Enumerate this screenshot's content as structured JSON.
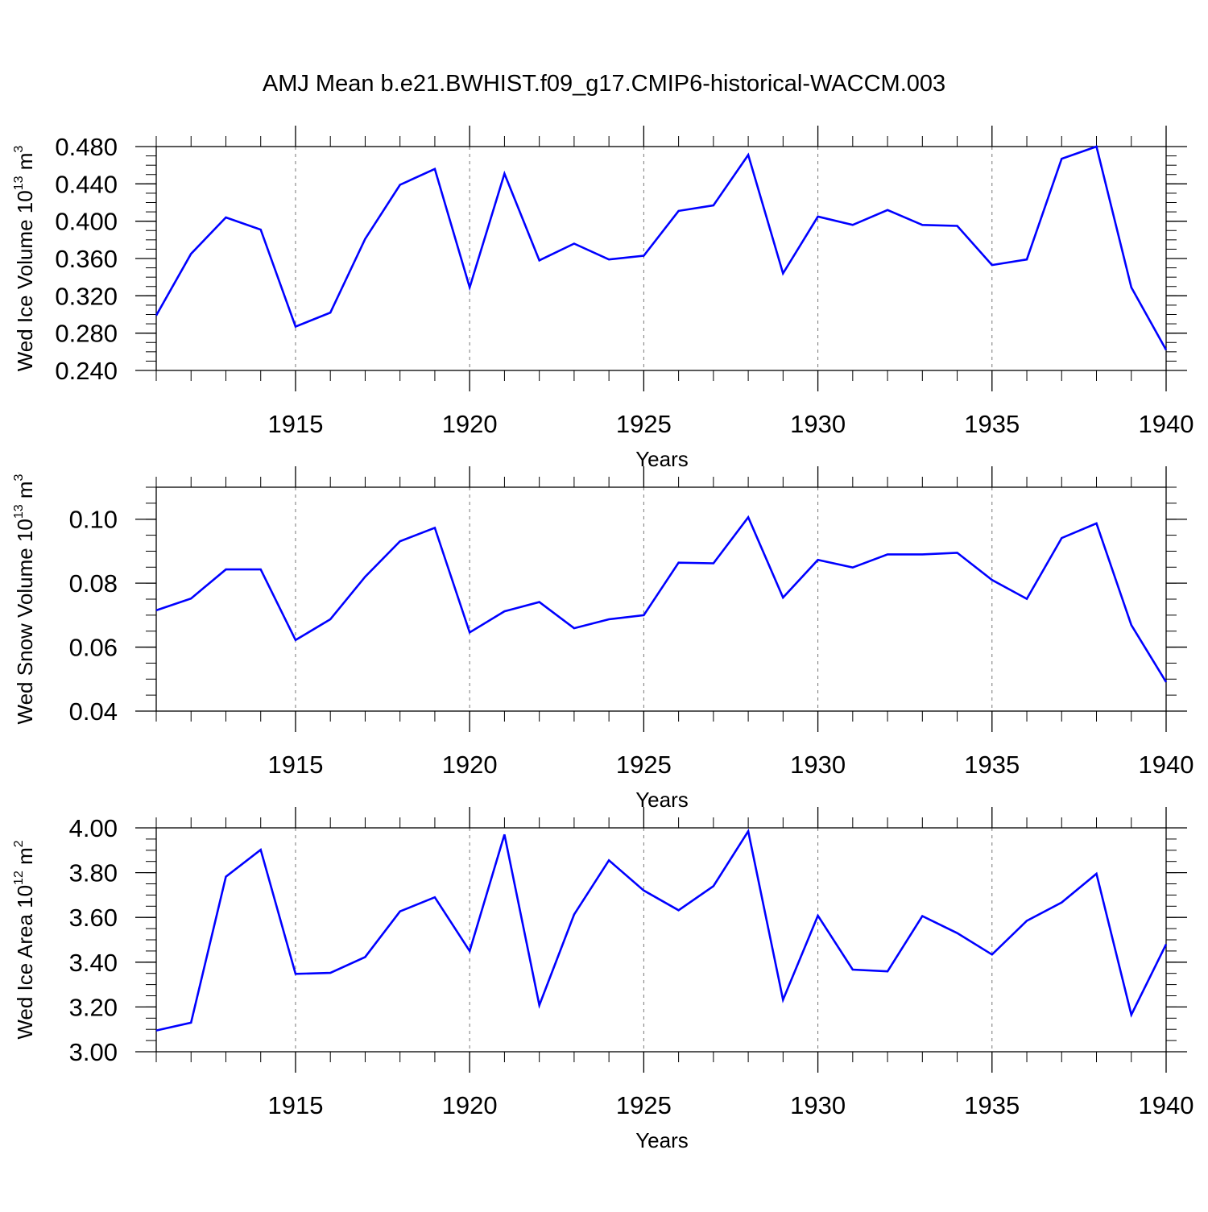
{
  "figure": {
    "title": "AMJ Mean b.e21.BWHIST.f09_g17.CMIP6-historical-WACCM.003"
  },
  "chart_data": [
    {
      "type": "line",
      "xlabel": "Years",
      "ylabel_base": "Wed Ice Volume 10",
      "ylabel_exp": "13",
      "ylabel_unit": "m",
      "ylabel_unit_exp": "3",
      "xlim": [
        1911,
        1940
      ],
      "ylim": [
        0.24,
        0.48
      ],
      "yticks": [
        0.24,
        0.28,
        0.32,
        0.36,
        0.4,
        0.44,
        0.48
      ],
      "ytick_labels": [
        "0.240",
        "0.280",
        "0.320",
        "0.360",
        "0.400",
        "0.440",
        "0.480"
      ],
      "xticks": [
        1915,
        1920,
        1925,
        1930,
        1935,
        1940
      ],
      "xtick_labels": [
        "1915",
        "1920",
        "1925",
        "1930",
        "1935",
        "1940"
      ],
      "series_color": "#0000ff",
      "x": [
        1911,
        1912,
        1913,
        1914,
        1915,
        1916,
        1917,
        1918,
        1919,
        1920,
        1921,
        1922,
        1923,
        1924,
        1925,
        1926,
        1927,
        1928,
        1929,
        1930,
        1931,
        1932,
        1933,
        1934,
        1935,
        1936,
        1937,
        1938,
        1939,
        1940
      ],
      "values": [
        0.299,
        0.365,
        0.404,
        0.391,
        0.287,
        0.302,
        0.381,
        0.439,
        0.456,
        0.329,
        0.451,
        0.358,
        0.376,
        0.359,
        0.363,
        0.411,
        0.417,
        0.471,
        0.344,
        0.405,
        0.396,
        0.412,
        0.396,
        0.395,
        0.353,
        0.359,
        0.467,
        0.48,
        0.329,
        0.262
      ]
    },
    {
      "type": "line",
      "xlabel": "Years",
      "ylabel_base": "Wed Snow Volume 10",
      "ylabel_exp": "13",
      "ylabel_unit": "m",
      "ylabel_unit_exp": "3",
      "xlim": [
        1911,
        1940
      ],
      "ylim": [
        0.04,
        0.11
      ],
      "yticks": [
        0.04,
        0.06,
        0.08,
        0.1
      ],
      "ytick_labels": [
        "0.04",
        "0.06",
        "0.08",
        "0.10"
      ],
      "xticks": [
        1915,
        1920,
        1925,
        1930,
        1935,
        1940
      ],
      "xtick_labels": [
        "1915",
        "1920",
        "1925",
        "1930",
        "1935",
        "1940"
      ],
      "series_color": "#0000ff",
      "x": [
        1911,
        1912,
        1913,
        1914,
        1915,
        1916,
        1917,
        1918,
        1919,
        1920,
        1921,
        1922,
        1923,
        1924,
        1925,
        1926,
        1927,
        1928,
        1929,
        1930,
        1931,
        1932,
        1933,
        1934,
        1935,
        1936,
        1937,
        1938,
        1939,
        1940
      ],
      "values": [
        0.0715,
        0.0752,
        0.0843,
        0.0843,
        0.0622,
        0.0687,
        0.082,
        0.0931,
        0.0973,
        0.0646,
        0.0712,
        0.0741,
        0.0659,
        0.0687,
        0.07,
        0.0864,
        0.0862,
        0.1006,
        0.0755,
        0.0873,
        0.0849,
        0.089,
        0.089,
        0.0895,
        0.081,
        0.0751,
        0.0941,
        0.0987,
        0.0669,
        0.0491
      ]
    },
    {
      "type": "line",
      "xlabel": "Years",
      "ylabel_base": "Wed Ice Area 10",
      "ylabel_exp": "12",
      "ylabel_unit": "m",
      "ylabel_unit_exp": "2",
      "xlim": [
        1911,
        1940
      ],
      "ylim": [
        3.0,
        4.0
      ],
      "yticks": [
        3.0,
        3.2,
        3.4,
        3.6,
        3.8,
        4.0
      ],
      "ytick_labels": [
        "3.00",
        "3.20",
        "3.40",
        "3.60",
        "3.80",
        "4.00"
      ],
      "xticks": [
        1915,
        1920,
        1925,
        1930,
        1935,
        1940
      ],
      "xtick_labels": [
        "1915",
        "1920",
        "1925",
        "1930",
        "1935",
        "1940"
      ],
      "series_color": "#0000ff",
      "x": [
        1911,
        1912,
        1913,
        1914,
        1915,
        1916,
        1917,
        1918,
        1919,
        1920,
        1921,
        1922,
        1923,
        1924,
        1925,
        1926,
        1927,
        1928,
        1929,
        1930,
        1931,
        1932,
        1933,
        1934,
        1935,
        1936,
        1937,
        1938,
        1939,
        1940
      ],
      "values": [
        3.095,
        3.13,
        3.782,
        3.902,
        3.348,
        3.352,
        3.423,
        3.627,
        3.69,
        3.45,
        3.97,
        3.208,
        3.613,
        3.855,
        3.72,
        3.632,
        3.74,
        3.985,
        3.232,
        3.608,
        3.367,
        3.359,
        3.606,
        3.53,
        3.434,
        3.585,
        3.667,
        3.795,
        3.165,
        3.48
      ]
    }
  ]
}
